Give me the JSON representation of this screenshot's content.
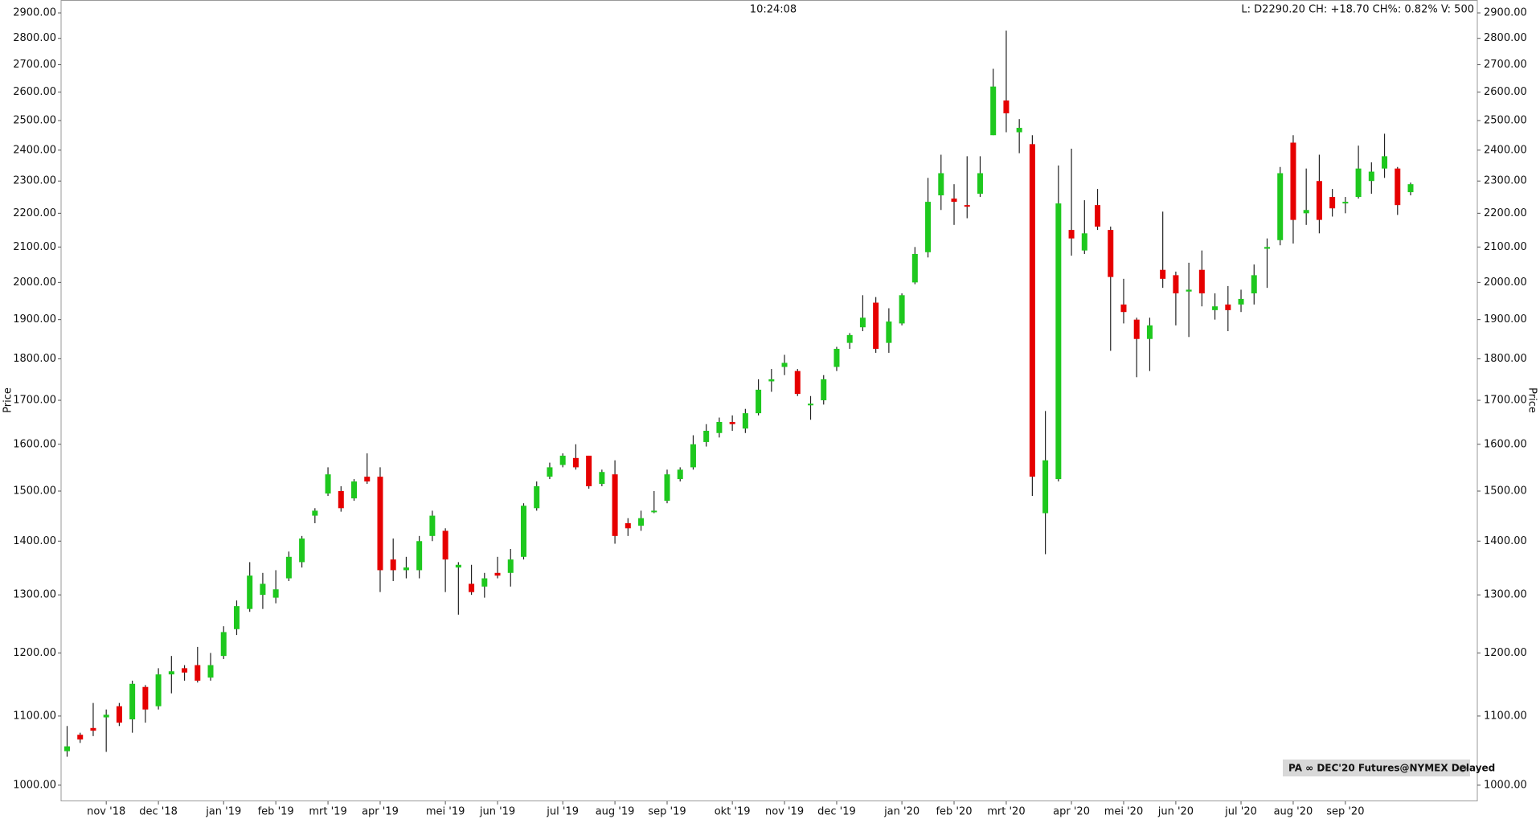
{
  "chart_data": {
    "type": "candlestick",
    "title": "10:24:08",
    "subtitle": "L: D2290.20 CH: +18.70 CH%: 0.82% V: 500",
    "ylabel": "Price",
    "legend": "PA ∞ DEC'20 Futures@NYMEX Delayed",
    "legend_position": "lower right",
    "log_scale": true,
    "up_color": "#1ec81e",
    "down_color": "#e60000",
    "ylim": [
      978,
      2952
    ],
    "yticks": [
      {
        "value": 1000,
        "label": "1000.00"
      },
      {
        "value": 1100,
        "label": "1100.00"
      },
      {
        "value": 1200,
        "label": "1200.00"
      },
      {
        "value": 1300,
        "label": "1300.00"
      },
      {
        "value": 1400,
        "label": "1400.00"
      },
      {
        "value": 1500,
        "label": "1500.00"
      },
      {
        "value": 1600,
        "label": "1600.00"
      },
      {
        "value": 1700,
        "label": "1700.00"
      },
      {
        "value": 1800,
        "label": "1800.00"
      },
      {
        "value": 1900,
        "label": "1900.00"
      },
      {
        "value": 2000,
        "label": "2000.00"
      },
      {
        "value": 2100,
        "label": "2100.00"
      },
      {
        "value": 2200,
        "label": "2200.00"
      },
      {
        "value": 2300,
        "label": "2300.00"
      },
      {
        "value": 2400,
        "label": "2400.00"
      },
      {
        "value": 2500,
        "label": "2500.00"
      },
      {
        "value": 2600,
        "label": "2600.00"
      },
      {
        "value": 2700,
        "label": "2700.00"
      },
      {
        "value": 2800,
        "label": "2800.00"
      },
      {
        "value": 2900,
        "label": "2900.00"
      }
    ],
    "categories": [
      null,
      null,
      null,
      "nov '18",
      null,
      null,
      null,
      "dec '18",
      null,
      null,
      null,
      null,
      "jan '19",
      null,
      null,
      null,
      "feb '19",
      null,
      null,
      null,
      "mrt '19",
      null,
      null,
      null,
      "apr '19",
      null,
      null,
      null,
      null,
      "mei '19",
      null,
      null,
      null,
      "jun '19",
      null,
      null,
      null,
      null,
      "jul '19",
      null,
      null,
      null,
      "aug '19",
      null,
      null,
      null,
      "sep '19",
      null,
      null,
      null,
      null,
      "okt '19",
      null,
      null,
      null,
      "nov '19",
      null,
      null,
      null,
      "dec '19",
      null,
      null,
      null,
      null,
      "jan '20",
      null,
      null,
      null,
      "feb '20",
      null,
      null,
      null,
      "mrt '20",
      null,
      null,
      null,
      null,
      "apr '20",
      null,
      null,
      null,
      "mei '20",
      null,
      null,
      null,
      "jun '20",
      null,
      null,
      null,
      null,
      "jul '20",
      null,
      null,
      null,
      "aug '20",
      null,
      null,
      null,
      "sep '20",
      null,
      null,
      null,
      null,
      null
    ],
    "open": [
      1048,
      1072,
      1082,
      1098,
      1115,
      1095,
      1145,
      1115,
      1165,
      1175,
      1180,
      1160,
      1195,
      1240,
      1275,
      1300,
      1295,
      1330,
      1360,
      1450,
      1495,
      1500,
      1485,
      1530,
      1530,
      1365,
      1345,
      1345,
      1410,
      1420,
      1350,
      1320,
      1315,
      1340,
      1340,
      1370,
      1465,
      1530,
      1555,
      1570,
      1575,
      1515,
      1535,
      1435,
      1430,
      1458,
      1480,
      1525,
      1550,
      1605,
      1625,
      1650,
      1635,
      1670,
      1745,
      1780,
      1770,
      1690,
      1700,
      1780,
      1840,
      1880,
      1945,
      1840,
      1890,
      2000,
      2085,
      2255,
      2245,
      2225,
      2260,
      2450,
      2570,
      2460,
      2420,
      1455,
      1525,
      2150,
      2090,
      2225,
      2150,
      1940,
      1900,
      1850,
      2035,
      2020,
      1975,
      2035,
      1925,
      1940,
      1940,
      1970,
      2095,
      2120,
      2425,
      2200,
      2300,
      2250,
      2230,
      2250,
      2300,
      2340,
      2340,
      2265
    ],
    "high": [
      1085,
      1075,
      1120,
      1110,
      1120,
      1155,
      1148,
      1175,
      1195,
      1180,
      1210,
      1200,
      1245,
      1290,
      1360,
      1340,
      1345,
      1380,
      1410,
      1465,
      1550,
      1510,
      1525,
      1580,
      1550,
      1405,
      1370,
      1410,
      1460,
      1425,
      1360,
      1355,
      1340,
      1370,
      1385,
      1475,
      1520,
      1560,
      1580,
      1600,
      1575,
      1545,
      1565,
      1445,
      1460,
      1500,
      1545,
      1550,
      1620,
      1645,
      1660,
      1665,
      1680,
      1750,
      1775,
      1810,
      1775,
      1710,
      1760,
      1830,
      1865,
      1965,
      1960,
      1930,
      1970,
      2100,
      2310,
      2385,
      2290,
      2380,
      2380,
      2685,
      2830,
      2505,
      2450,
      1675,
      2350,
      2405,
      2240,
      2275,
      2160,
      2010,
      1905,
      1905,
      2205,
      2030,
      2055,
      2090,
      1970,
      1990,
      1980,
      2050,
      2125,
      2345,
      2450,
      2340,
      2385,
      2275,
      2250,
      2415,
      2360,
      2455,
      2345,
      2295
    ],
    "low": [
      1040,
      1060,
      1070,
      1047,
      1085,
      1075,
      1090,
      1110,
      1135,
      1155,
      1152,
      1155,
      1190,
      1230,
      1270,
      1275,
      1285,
      1325,
      1350,
      1435,
      1490,
      1458,
      1480,
      1515,
      1305,
      1325,
      1330,
      1330,
      1400,
      1305,
      1265,
      1300,
      1295,
      1330,
      1315,
      1365,
      1460,
      1525,
      1550,
      1545,
      1505,
      1510,
      1395,
      1410,
      1420,
      1455,
      1475,
      1520,
      1545,
      1595,
      1615,
      1630,
      1625,
      1665,
      1720,
      1760,
      1710,
      1655,
      1690,
      1770,
      1825,
      1870,
      1815,
      1815,
      1885,
      1995,
      2070,
      2210,
      2165,
      2185,
      2250,
      2450,
      2460,
      2390,
      1490,
      1375,
      1520,
      2075,
      2080,
      2150,
      1820,
      1890,
      1755,
      1770,
      1985,
      1885,
      1855,
      1935,
      1900,
      1870,
      1920,
      1940,
      1985,
      2105,
      2110,
      2165,
      2140,
      2190,
      2200,
      2245,
      2260,
      2310,
      2195,
      2255
    ],
    "close": [
      1055,
      1065,
      1078,
      1102,
      1090,
      1150,
      1110,
      1165,
      1170,
      1168,
      1155,
      1180,
      1235,
      1280,
      1335,
      1320,
      1310,
      1370,
      1405,
      1460,
      1535,
      1465,
      1520,
      1520,
      1345,
      1345,
      1350,
      1400,
      1450,
      1365,
      1355,
      1305,
      1330,
      1335,
      1365,
      1470,
      1510,
      1550,
      1575,
      1550,
      1510,
      1540,
      1410,
      1425,
      1445,
      1460,
      1535,
      1545,
      1600,
      1630,
      1650,
      1645,
      1670,
      1725,
      1750,
      1790,
      1715,
      1692,
      1750,
      1825,
      1860,
      1905,
      1825,
      1895,
      1965,
      2080,
      2235,
      2325,
      2235,
      2220,
      2325,
      2620,
      2525,
      2475,
      1530,
      1565,
      2230,
      2125,
      2140,
      2160,
      2015,
      1920,
      1850,
      1885,
      2010,
      1970,
      1980,
      1970,
      1935,
      1925,
      1955,
      2020,
      2100,
      2325,
      2180,
      2210,
      2180,
      2215,
      2235,
      2340,
      2330,
      2380,
      2225,
      2290
    ]
  }
}
